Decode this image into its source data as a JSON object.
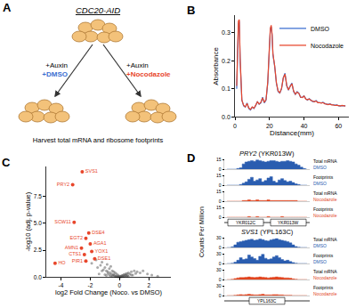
{
  "diagram": {
    "panel": "A",
    "title": "CDC20-AID",
    "treatments": [
      {
        "lines": [
          "+Auxin",
          "+DMSO"
        ],
        "color": "#3b6fd1"
      },
      {
        "lines": [
          "+Auxin",
          "+Nocodazole"
        ],
        "color": "#e8462b"
      }
    ],
    "footer": "Harvest total mRNA and ribosome footprints"
  },
  "chart_data": [
    {
      "panel": "B",
      "type": "line",
      "x_label": "Distance(mm)",
      "y_label": "Absorbance",
      "xlim": [
        0,
        66
      ],
      "xticks": [
        0,
        20,
        40,
        60
      ],
      "ylim": [
        0,
        0.36
      ],
      "yticks": [
        {
          "value": 0,
          "label": "0.0"
        },
        0.1,
        0.2,
        0.3
      ],
      "grid": false,
      "legend": "top-right",
      "x": [
        1,
        2,
        2.5,
        3,
        4,
        5,
        6,
        7,
        8,
        9,
        10,
        11,
        12,
        13,
        14,
        15,
        16,
        17,
        18,
        19,
        20,
        20.5,
        21,
        21.5,
        22,
        23,
        24,
        25,
        26,
        27,
        28,
        29,
        30,
        31,
        32,
        33,
        34,
        35,
        36,
        37,
        38,
        39,
        40,
        41,
        42,
        43,
        44,
        45,
        46,
        47,
        48,
        49,
        50,
        51,
        52,
        53,
        54,
        55,
        56,
        57,
        58,
        59,
        60,
        61,
        62,
        63,
        64
      ],
      "series": [
        {
          "name": "DMSO",
          "color": "#3b6fd1",
          "values": [
            0.1,
            0.33,
            0.34,
            0.2,
            0.06,
            0.04,
            0.035,
            0.05,
            0.03,
            0.025,
            0.035,
            0.03,
            0.04,
            0.055,
            0.045,
            0.05,
            0.07,
            0.05,
            0.06,
            0.12,
            0.25,
            0.31,
            0.32,
            0.29,
            0.22,
            0.18,
            0.12,
            0.09,
            0.085,
            0.1,
            0.14,
            0.155,
            0.11,
            0.095,
            0.11,
            0.12,
            0.09,
            0.08,
            0.09,
            0.085,
            0.07,
            0.07,
            0.075,
            0.065,
            0.06,
            0.065,
            0.06,
            0.055,
            0.055,
            0.058,
            0.052,
            0.05,
            0.05,
            0.052,
            0.048,
            0.045,
            0.045,
            0.047,
            0.044,
            0.042,
            0.042,
            0.043,
            0.04,
            0.04,
            0.04,
            0.042,
            0.04
          ]
        },
        {
          "name": "Nocodazole",
          "color": "#e8462b",
          "values": [
            0.11,
            0.34,
            0.345,
            0.21,
            0.06,
            0.042,
            0.036,
            0.048,
            0.032,
            0.027,
            0.036,
            0.031,
            0.042,
            0.054,
            0.046,
            0.052,
            0.068,
            0.052,
            0.062,
            0.125,
            0.255,
            0.315,
            0.325,
            0.295,
            0.225,
            0.182,
            0.122,
            0.092,
            0.086,
            0.102,
            0.138,
            0.152,
            0.112,
            0.096,
            0.108,
            0.118,
            0.092,
            0.081,
            0.088,
            0.084,
            0.071,
            0.069,
            0.074,
            0.064,
            0.061,
            0.064,
            0.059,
            0.056,
            0.054,
            0.057,
            0.051,
            0.051,
            0.049,
            0.051,
            0.047,
            0.046,
            0.044,
            0.046,
            0.043,
            0.043,
            0.041,
            0.042,
            0.041,
            0.039,
            0.041,
            0.041,
            0.039
          ]
        }
      ]
    },
    {
      "panel": "C",
      "type": "scatter",
      "x_label": "log2 Fold Change (Noco. vs DMSO)",
      "y_label": "-log10 (adj. p-value)",
      "xlim": [
        -5,
        3.5
      ],
      "xticks": [
        -4,
        -2,
        0,
        2
      ],
      "ylim": [
        0,
        10.3
      ],
      "yticks": [
        {
          "value": 0,
          "label": "0.0"
        },
        2.5,
        {
          "value": 5,
          "label": "5.0"
        },
        7.5
      ],
      "grid": false,
      "series": [
        {
          "color": "#555555",
          "x": [
            -1.9,
            -1.6,
            -1.5,
            -1.3,
            -1.2,
            -1.1,
            -1.0,
            -0.9,
            -0.85,
            -0.8,
            -0.7,
            -0.65,
            -0.6,
            -0.55,
            -0.5,
            -0.45,
            -0.4,
            -0.35,
            -0.3,
            -0.25,
            -0.2,
            -0.15,
            -0.1,
            -0.05,
            0,
            0.05,
            0.1,
            0.15,
            0.2,
            0.25,
            0.3,
            0.35,
            0.4,
            0.45,
            0.5,
            0.55,
            0.6,
            0.7,
            0.8,
            0.9,
            1.0,
            1.1,
            1.2,
            1.4,
            1.6,
            1.9,
            2.2,
            2.6,
            -1.4,
            -1.0,
            -0.7,
            -0.5,
            -0.3,
            -0.1,
            0.1,
            0.3,
            0.5,
            -0.9,
            -0.6,
            -0.2,
            0.2,
            0.6,
            -1.2,
            -0.8,
            -0.4,
            0,
            0.4,
            0.8
          ],
          "values": [
            1.3,
            1.6,
            0.9,
            1.1,
            1.4,
            0.7,
            0.9,
            0.6,
            1.2,
            0.5,
            0.8,
            0.4,
            1.0,
            0.3,
            0.6,
            0.2,
            0.5,
            0.15,
            0.4,
            0.1,
            0.3,
            0.05,
            0.2,
            0.08,
            0.02,
            0.05,
            0.1,
            0.15,
            0.12,
            0.2,
            0.25,
            0.1,
            0.3,
            0.2,
            0.35,
            0.15,
            0.4,
            0.3,
            0.5,
            0.2,
            0.6,
            0.35,
            0.5,
            0.4,
            0.6,
            0.3,
            0.2,
            0.1,
            0.3,
            0.25,
            0.2,
            0.1,
            0.05,
            0.03,
            0.04,
            0.06,
            0.08,
            0.15,
            0.12,
            0.07,
            0.05,
            0.1,
            0.6,
            0.35,
            0.25,
            0.1,
            0.15,
            0.2
          ]
        },
        {
          "color": "#e8462b",
          "x": [
            -2.55,
            -3.2,
            -2.1,
            -3.1,
            -2.0,
            -2.3,
            -1.9,
            -2.6,
            -1.7,
            -2.4,
            -4.4,
            -2.3
          ],
          "values": [
            9.8,
            8.6,
            4.1,
            5.1,
            3.1,
            3.6,
            2.4,
            2.7,
            1.7,
            2.1,
            1.3,
            1.5
          ],
          "labels": [
            "SVS1",
            "PRY2",
            "DSE4",
            "SCW11",
            "AGA1",
            "EGT2",
            "YOX1",
            "AMN1",
            "DSE1",
            "CTS1",
            "HO",
            "PIR1"
          ]
        }
      ]
    },
    {
      "panel": "D",
      "type": "area",
      "y_label": "Counts Per Million",
      "tick_labels": "y",
      "genes": [
        {
          "title": "PRY2 (YKR013W)",
          "gene_labels": [
            "YKR012C",
            "YKR013W"
          ],
          "x": [
            1,
            2,
            3,
            4,
            5,
            6,
            7,
            8,
            9,
            10,
            11,
            12,
            13,
            14,
            15,
            16,
            17,
            18,
            19,
            20,
            21,
            22,
            23,
            24,
            25,
            26,
            27,
            28,
            29,
            30
          ],
          "xlim": [
            0,
            31
          ],
          "ylim": [
            0,
            15
          ],
          "yticks": [
            0,
            15
          ],
          "tracks": [
            {
              "name": "Total mRNA",
              "condition": "DMSO",
              "color": "#2a5db0",
              "values": [
                0,
                0,
                0,
                0,
                1,
                2,
                8,
                11,
                12,
                13,
                12,
                14,
                13,
                12,
                11,
                12,
                13,
                13,
                12,
                11,
                12,
                12,
                13,
                12,
                11,
                8,
                6,
                3,
                1,
                0
              ]
            },
            {
              "name": "Footprints",
              "condition": "DMSO",
              "color": "#2a5db0",
              "values": [
                0,
                0,
                0,
                0,
                0,
                1,
                3,
                5,
                9,
                12,
                6,
                8,
                10,
                5,
                7,
                11,
                13,
                6,
                4,
                8,
                10,
                7,
                5,
                6,
                4,
                2,
                1,
                0,
                0,
                0
              ]
            },
            {
              "name": "Total mRNA",
              "condition": "Nocodazole",
              "color": "#e2451f",
              "values": [
                0,
                0,
                0,
                0,
                0,
                0,
                1,
                1,
                2,
                1,
                1,
                2,
                1,
                1,
                1,
                2,
                1,
                1,
                1,
                1,
                1,
                1,
                1,
                1,
                1,
                1,
                0,
                0,
                0,
                0
              ]
            },
            {
              "name": "Footprints",
              "condition": "Nocodazole",
              "color": "#e2451f",
              "values": [
                0,
                0,
                0,
                0,
                0,
                0,
                0,
                0,
                1,
                0,
                0,
                1,
                0,
                0,
                0,
                1,
                0,
                0,
                0,
                0,
                1,
                0,
                0,
                0,
                0,
                0,
                0,
                0,
                0,
                0
              ]
            }
          ]
        },
        {
          "title": "SVS1 (YPL163C)",
          "gene_labels": [
            "YPL163C"
          ],
          "x": [
            1,
            2,
            3,
            4,
            5,
            6,
            7,
            8,
            9,
            10,
            11,
            12,
            13,
            14,
            15,
            16,
            17,
            18,
            19,
            20,
            21,
            22,
            23,
            24,
            25,
            26,
            27,
            28,
            29,
            30
          ],
          "xlim": [
            0,
            31
          ],
          "ylim": [
            0,
            30
          ],
          "yticks": [
            0,
            30
          ],
          "tracks": [
            {
              "name": "Total mRNA",
              "condition": "DMSO",
              "color": "#2a5db0",
              "values": [
                0,
                0,
                2,
                8,
                16,
                18,
                20,
                22,
                24,
                25,
                22,
                23,
                26,
                24,
                21,
                20,
                23,
                25,
                27,
                24,
                22,
                20,
                18,
                14,
                8,
                3,
                1,
                0,
                0,
                0
              ]
            },
            {
              "name": "Footprints",
              "condition": "DMSO",
              "color": "#2a5db0",
              "values": [
                0,
                0,
                1,
                4,
                10,
                18,
                12,
                14,
                26,
                20,
                15,
                10,
                22,
                28,
                16,
                12,
                14,
                20,
                24,
                18,
                12,
                8,
                10,
                6,
                3,
                1,
                0,
                0,
                0,
                0
              ]
            },
            {
              "name": "Total mRNA",
              "condition": "Nocodazole",
              "color": "#e2451f",
              "values": [
                0,
                0,
                1,
                3,
                5,
                6,
                6,
                7,
                8,
                7,
                6,
                7,
                8,
                7,
                6,
                5,
                6,
                7,
                8,
                7,
                6,
                5,
                5,
                4,
                2,
                1,
                0,
                0,
                0,
                0
              ]
            },
            {
              "name": "Footprints",
              "condition": "Nocodazole",
              "color": "#e2451f",
              "values": [
                0,
                0,
                0,
                1,
                2,
                3,
                2,
                3,
                4,
                3,
                2,
                2,
                3,
                4,
                2,
                2,
                2,
                3,
                3,
                2,
                2,
                1,
                1,
                1,
                0,
                0,
                0,
                0,
                0,
                0
              ]
            }
          ]
        }
      ]
    }
  ]
}
